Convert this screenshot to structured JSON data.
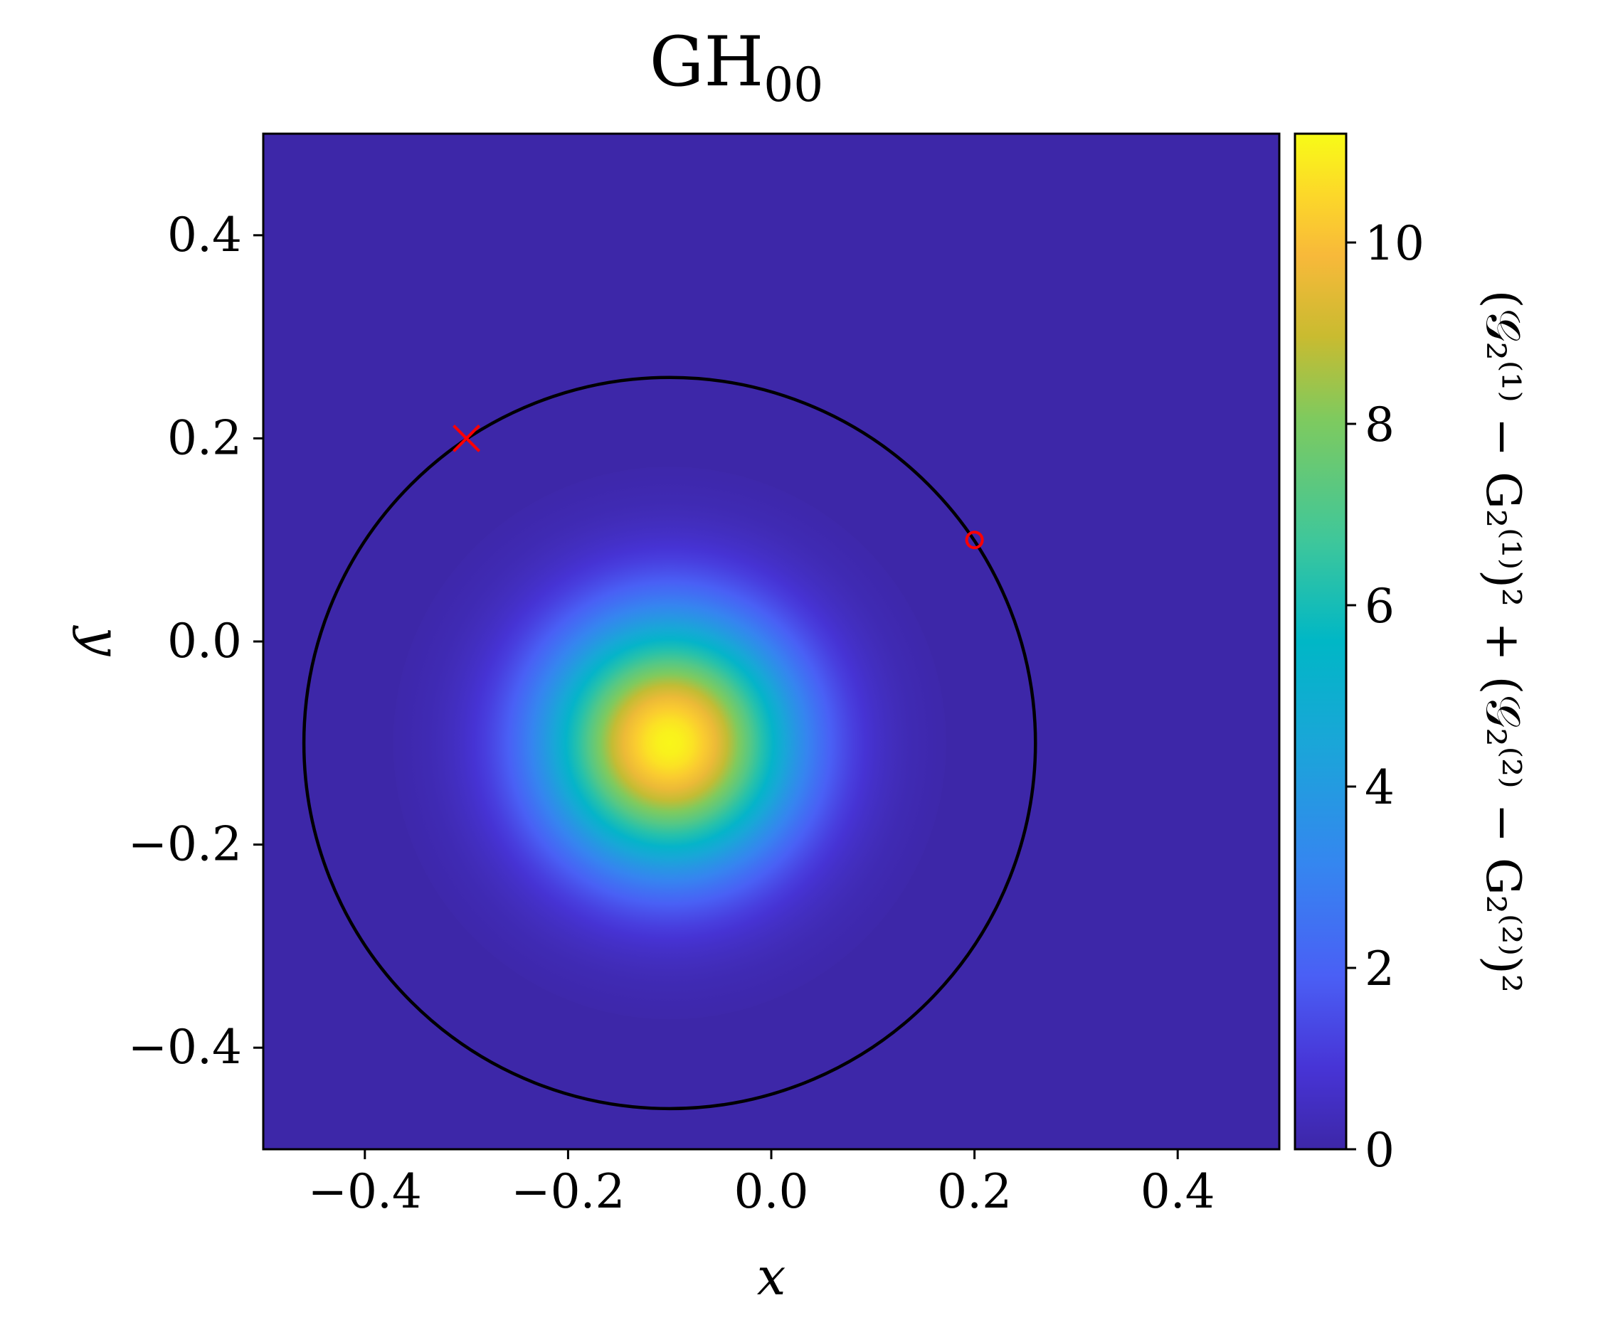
{
  "chart_data": {
    "type": "heatmap",
    "title": "GH",
    "title_subscript": "00",
    "xlabel": "x",
    "ylabel": "y",
    "xlim": [
      -0.5,
      0.5
    ],
    "ylim": [
      -0.5,
      0.5
    ],
    "xticks": [
      -0.4,
      -0.2,
      0.0,
      0.2,
      0.4
    ],
    "yticks": [
      -0.4,
      -0.2,
      0.0,
      0.2,
      0.4
    ],
    "xtick_labels": [
      "−0.4",
      "−0.2",
      "0.0",
      "0.2",
      "0.4"
    ],
    "ytick_labels": [
      "−0.4",
      "−0.2",
      "0.0",
      "0.2",
      "0.4"
    ],
    "colormap": "plasma-like (indigo → blue → teal → green → orange → yellow)",
    "colorbar": {
      "label": "(𝒢₂⁽¹⁾ − G₂⁽¹⁾)² + (𝒢₂⁽²⁾ − G₂⁽²⁾)²",
      "range": [
        0,
        11.2
      ],
      "ticks": [
        0,
        2,
        4,
        6,
        8,
        10
      ],
      "tick_labels": [
        "0",
        "2",
        "4",
        "6",
        "8",
        "10"
      ]
    },
    "field": {
      "description": "gaussian peak",
      "center": [
        -0.1,
        -0.1
      ],
      "peak_value": 11.1,
      "sigma": 0.085
    },
    "circle": {
      "center": [
        -0.1,
        -0.1
      ],
      "radius": 0.36,
      "color": "#000000"
    },
    "markers": [
      {
        "shape": "x",
        "x": -0.3,
        "y": 0.2,
        "color": "#ff0000"
      },
      {
        "shape": "o",
        "x": 0.2,
        "y": 0.1,
        "color": "#ff0000"
      }
    ],
    "grid": false
  }
}
